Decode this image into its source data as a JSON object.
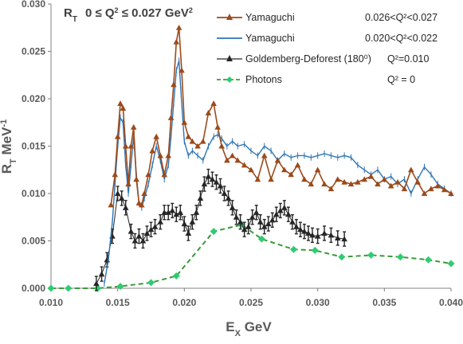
{
  "chart_data": {
    "type": "line",
    "title": "R_T 0 ≤ Q² ≤ 0.027 GeV²",
    "title_parts": {
      "symbol": "R",
      "sub": "T",
      "range": "0 ≤ Q",
      "sup": "2",
      "mid": " ≤ 0.027 GeV",
      "sup2": "2"
    },
    "xlabel": "E",
    "xlabel_sub": "X",
    "xlabel_unit": " GeV",
    "ylabel": "R",
    "ylabel_sub": "T",
    "ylabel_unit": " MeV",
    "ylabel_sup": "-1",
    "xlim": [
      0.01,
      0.04
    ],
    "ylim": [
      0.0,
      0.03
    ],
    "xticks": [
      "0.010",
      "0.015",
      "0.020",
      "0.025",
      "0.030",
      "0.035",
      "0.040"
    ],
    "yticks": [
      "0.000",
      "0.005",
      "0.010",
      "0.015",
      "0.020",
      "0.025",
      "0.030"
    ],
    "grid": false,
    "legend_position": "top-right",
    "series": [
      {
        "name": "Yamaguchi",
        "range_label": "0.026<Q²<0.027",
        "color": "#9c4a1a",
        "marker": "triangle",
        "line": "solid",
        "x": [
          0.0145,
          0.0148,
          0.015,
          0.0152,
          0.0154,
          0.0156,
          0.0158,
          0.016,
          0.0162,
          0.0164,
          0.0166,
          0.0168,
          0.017,
          0.0173,
          0.0176,
          0.0179,
          0.0182,
          0.0185,
          0.0188,
          0.019,
          0.0192,
          0.0194,
          0.0196,
          0.0198,
          0.02,
          0.0203,
          0.0206,
          0.021,
          0.0214,
          0.0218,
          0.0222,
          0.0225,
          0.0228,
          0.0232,
          0.0236,
          0.024,
          0.0245,
          0.025,
          0.0255,
          0.026,
          0.0265,
          0.027,
          0.0275,
          0.028,
          0.0285,
          0.029,
          0.0295,
          0.03,
          0.0305,
          0.031,
          0.0315,
          0.032,
          0.0325,
          0.033,
          0.0335,
          0.034,
          0.0345,
          0.035,
          0.0355,
          0.036,
          0.0365,
          0.037,
          0.0375,
          0.038,
          0.0385,
          0.039,
          0.0395,
          0.04
        ],
        "y": [
          0.0088,
          0.012,
          0.016,
          0.0195,
          0.019,
          0.015,
          0.011,
          0.015,
          0.017,
          0.0115,
          0.009,
          0.0088,
          0.01,
          0.012,
          0.0145,
          0.016,
          0.014,
          0.012,
          0.014,
          0.018,
          0.0215,
          0.026,
          0.0275,
          0.023,
          0.0175,
          0.016,
          0.0155,
          0.015,
          0.0155,
          0.0185,
          0.0195,
          0.017,
          0.015,
          0.0135,
          0.014,
          0.0135,
          0.013,
          0.0125,
          0.0115,
          0.014,
          0.0115,
          0.0135,
          0.0125,
          0.012,
          0.013,
          0.0115,
          0.011,
          0.0125,
          0.011,
          0.0105,
          0.0115,
          0.0112,
          0.011,
          0.0112,
          0.0115,
          0.0118,
          0.011,
          0.0115,
          0.0108,
          0.0112,
          0.0105,
          0.0125,
          0.0112,
          0.01,
          0.0105,
          0.0108,
          0.0104,
          0.01
        ]
      },
      {
        "name": "Yamaguchi",
        "range_label": "0.020<Q²<0.022",
        "color": "#2e75b6",
        "marker": "none",
        "line": "solid",
        "x": [
          0.014,
          0.0143,
          0.0146,
          0.0148,
          0.015,
          0.0152,
          0.0154,
          0.0156,
          0.0158,
          0.016,
          0.0162,
          0.0164,
          0.0166,
          0.0168,
          0.017,
          0.0173,
          0.0176,
          0.0179,
          0.0182,
          0.0185,
          0.0188,
          0.019,
          0.0192,
          0.0194,
          0.0196,
          0.0198,
          0.02,
          0.0203,
          0.0206,
          0.021,
          0.0214,
          0.0218,
          0.0222,
          0.0225,
          0.0228,
          0.0232,
          0.0236,
          0.024,
          0.0245,
          0.025,
          0.0255,
          0.026,
          0.0265,
          0.027,
          0.0275,
          0.028,
          0.0285,
          0.029,
          0.0295,
          0.03,
          0.0305,
          0.031,
          0.0315,
          0.032,
          0.0325,
          0.033,
          0.0335,
          0.034,
          0.0345,
          0.035,
          0.0355,
          0.036,
          0.0365,
          0.037,
          0.0375,
          0.038,
          0.0385,
          0.039,
          0.0395,
          0.04
        ],
        "y": [
          0.0005,
          0.003,
          0.007,
          0.011,
          0.015,
          0.018,
          0.0175,
          0.013,
          0.01,
          0.013,
          0.016,
          0.012,
          0.009,
          0.0085,
          0.0095,
          0.011,
          0.013,
          0.015,
          0.0135,
          0.0115,
          0.013,
          0.016,
          0.0195,
          0.023,
          0.024,
          0.0195,
          0.0155,
          0.014,
          0.0145,
          0.014,
          0.0135,
          0.015,
          0.016,
          0.0162,
          0.0158,
          0.015,
          0.0155,
          0.015,
          0.0152,
          0.0145,
          0.014,
          0.015,
          0.0145,
          0.0135,
          0.0142,
          0.0138,
          0.014,
          0.014,
          0.0138,
          0.014,
          0.0142,
          0.014,
          0.0138,
          0.014,
          0.0138,
          0.013,
          0.0125,
          0.012,
          0.0125,
          0.0115,
          0.0118,
          0.011,
          0.0115,
          0.01,
          0.0115,
          0.0128,
          0.012,
          0.011,
          0.0105,
          0.01
        ]
      },
      {
        "name": "Goldemberg-Deforest (180⁰)",
        "range_label": "Q²=0.010",
        "color": "#262626",
        "marker": "triangle",
        "line": "solid",
        "error_bars": true,
        "x": [
          0.0134,
          0.0138,
          0.0142,
          0.0146,
          0.015,
          0.0153,
          0.0156,
          0.016,
          0.0163,
          0.0166,
          0.0169,
          0.0172,
          0.0175,
          0.0178,
          0.0182,
          0.0185,
          0.0188,
          0.0191,
          0.0194,
          0.0197,
          0.02,
          0.0203,
          0.0206,
          0.0209,
          0.0212,
          0.0215,
          0.0218,
          0.0221,
          0.0224,
          0.0227,
          0.023,
          0.0233,
          0.0236,
          0.0239,
          0.0242,
          0.0245,
          0.0248,
          0.0251,
          0.0254,
          0.0257,
          0.026,
          0.0263,
          0.0266,
          0.0269,
          0.0272,
          0.0275,
          0.0278,
          0.0281,
          0.0284,
          0.0287,
          0.029,
          0.0293,
          0.0296,
          0.03,
          0.0305,
          0.031,
          0.0315,
          0.032
        ],
        "y": [
          0.0005,
          0.0015,
          0.003,
          0.0055,
          0.01,
          0.0095,
          0.0085,
          0.006,
          0.005,
          0.0055,
          0.005,
          0.0058,
          0.0062,
          0.0065,
          0.007,
          0.008,
          0.008,
          0.0082,
          0.0078,
          0.008,
          0.0068,
          0.0058,
          0.007,
          0.008,
          0.0095,
          0.011,
          0.0118,
          0.0115,
          0.0112,
          0.0108,
          0.01,
          0.0095,
          0.0085,
          0.0075,
          0.007,
          0.0062,
          0.0065,
          0.0075,
          0.008,
          0.007,
          0.0065,
          0.0068,
          0.0072,
          0.0078,
          0.0082,
          0.0085,
          0.0078,
          0.007,
          0.0065,
          0.0062,
          0.006,
          0.0058,
          0.0056,
          0.0055,
          0.0058,
          0.0056,
          0.0053,
          0.0052
        ]
      },
      {
        "name": "Photons",
        "range_label": "Q² = 0",
        "color": "#3a9a3a",
        "marker_color": "#2ecc71",
        "marker": "diamond",
        "line": "dashed",
        "x": [
          0.01,
          0.0113,
          0.0135,
          0.0152,
          0.0175,
          0.0194,
          0.0222,
          0.0243,
          0.0258,
          0.0282,
          0.0298,
          0.0318,
          0.034,
          0.0362,
          0.0383,
          0.04
        ],
        "y": [
          0.0,
          0.0,
          0.0,
          0.0002,
          0.0006,
          0.0013,
          0.006,
          0.0067,
          0.0052,
          0.0041,
          0.004,
          0.0033,
          0.0035,
          0.0033,
          0.003,
          0.0026
        ]
      }
    ]
  }
}
